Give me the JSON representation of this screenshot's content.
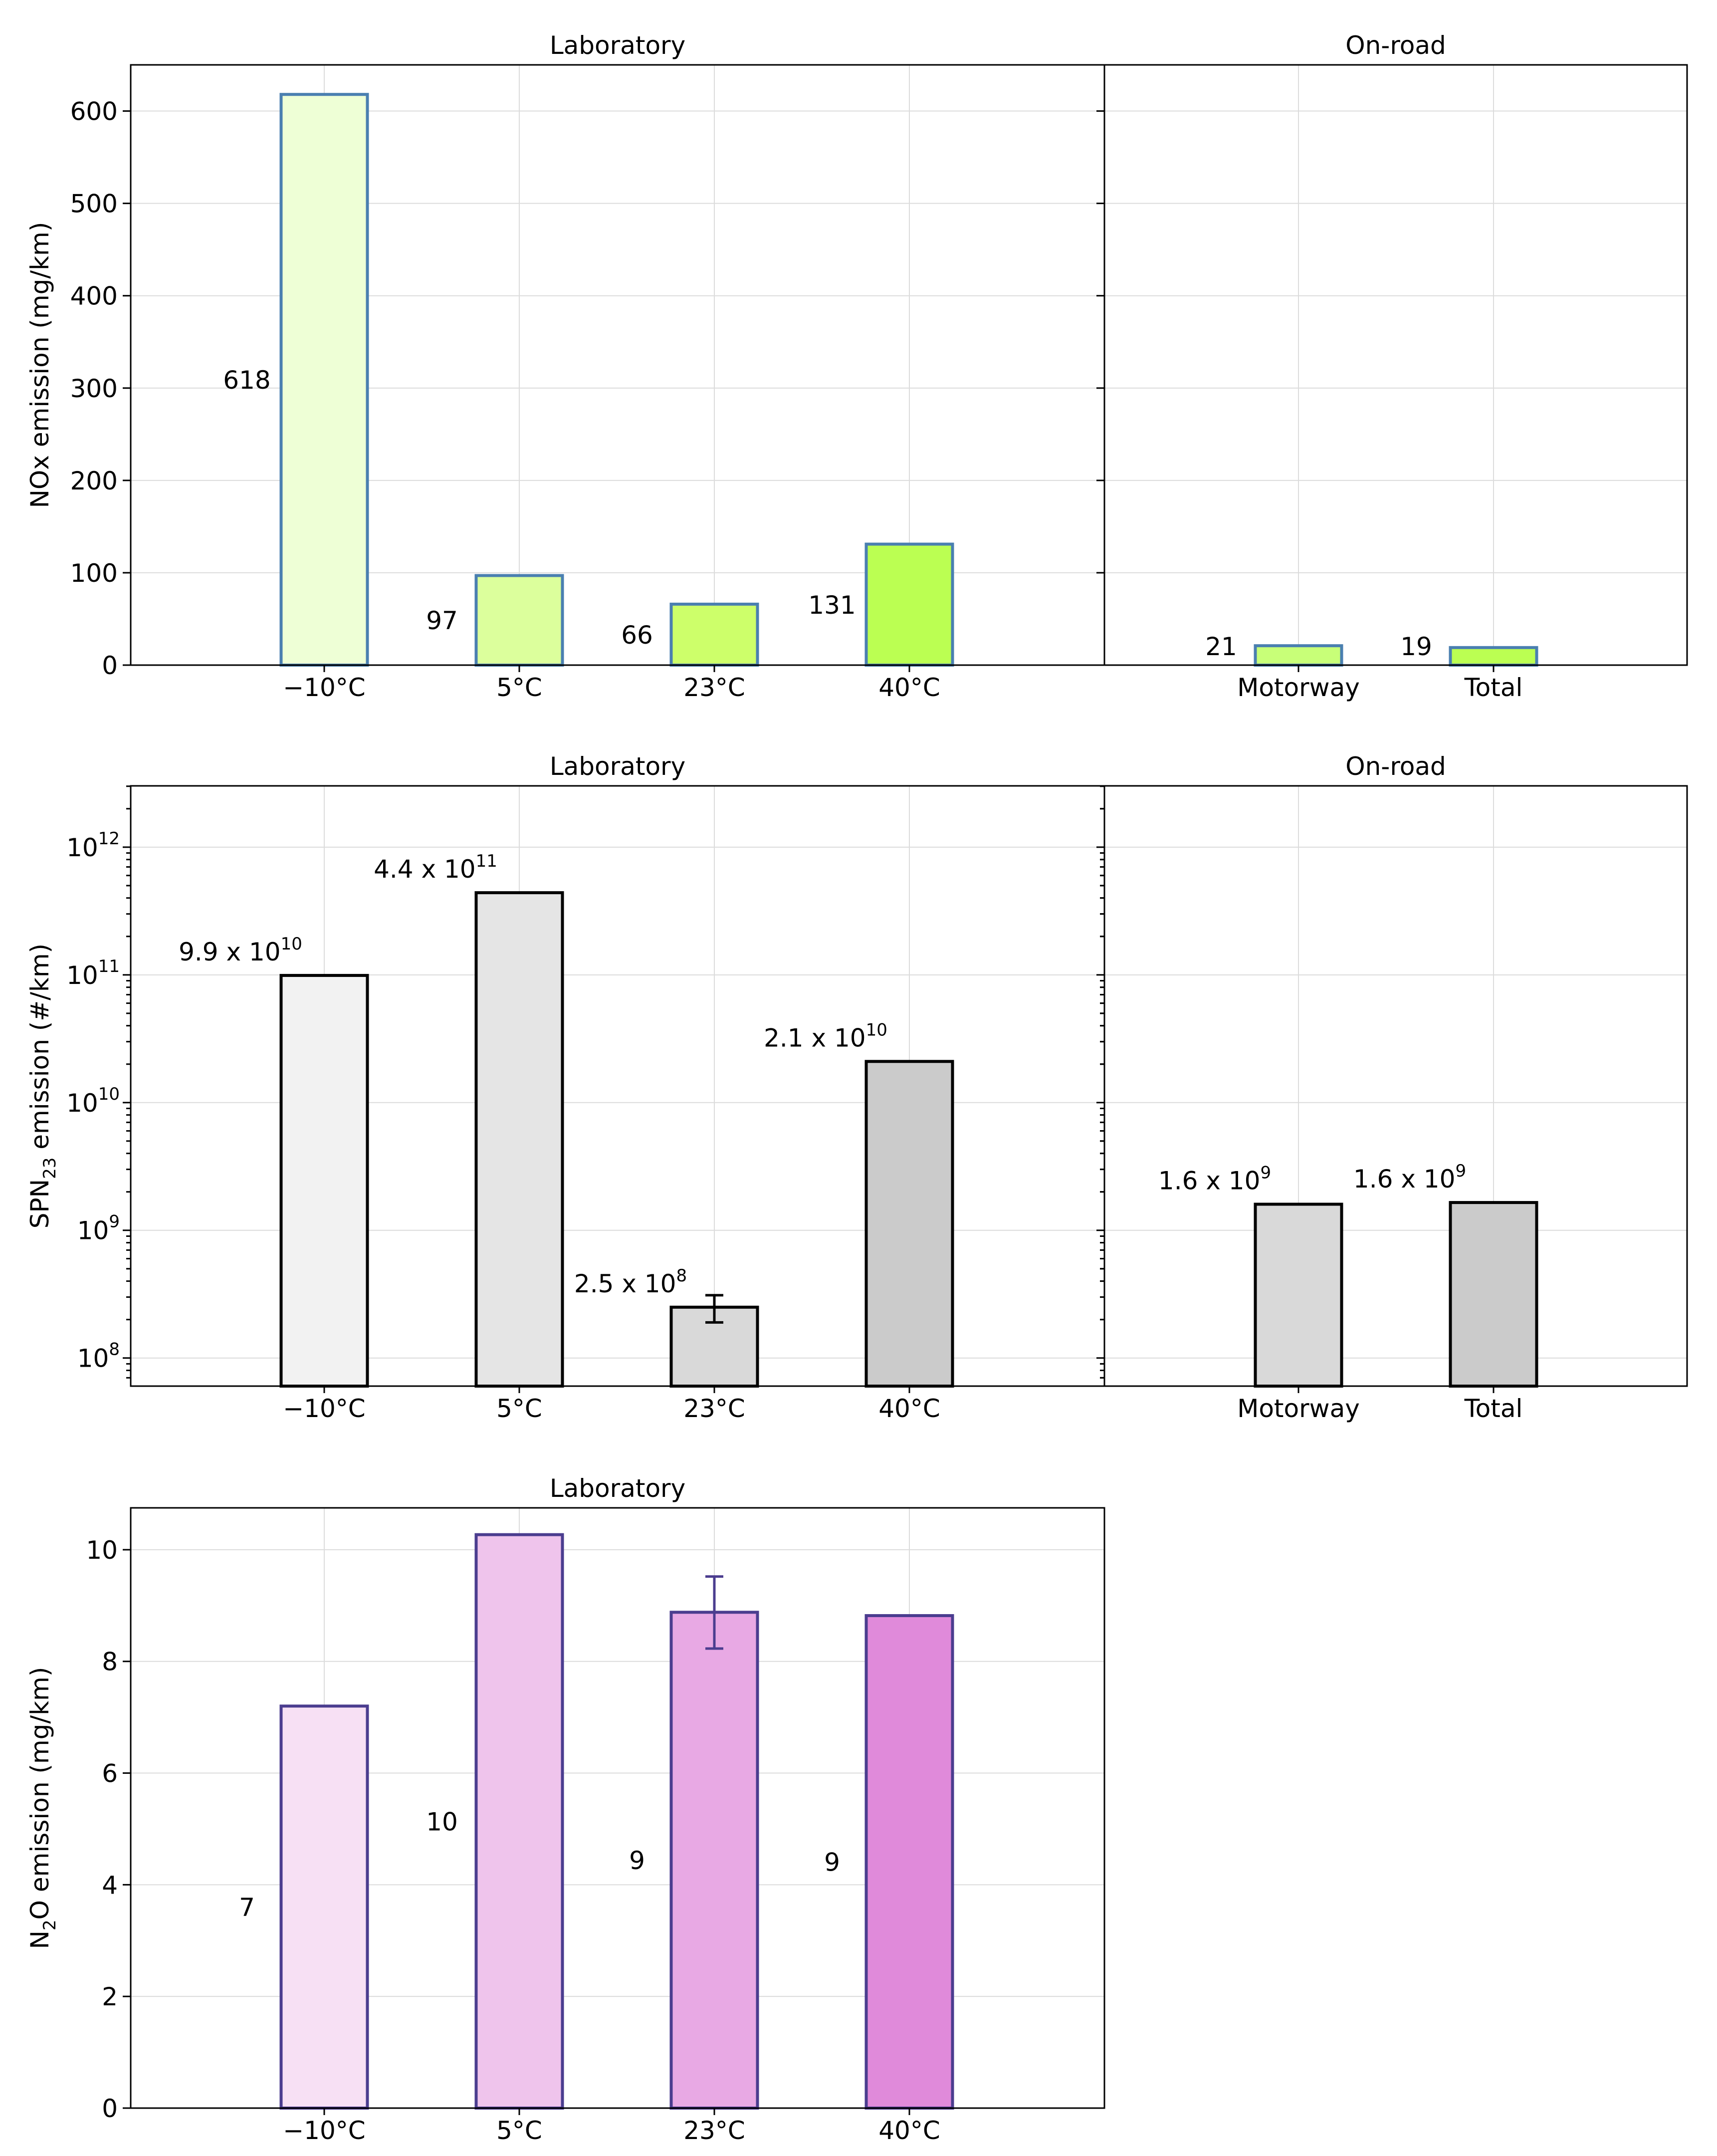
{
  "chart_data": [
    {
      "type": "bar",
      "title": "Laboratory",
      "ylabel": "NOx emission (mg/km)",
      "categories": [
        "−10°C",
        "5°C",
        "23°C",
        "40°C"
      ],
      "values": [
        618,
        97,
        66,
        131
      ],
      "labels": [
        "618",
        "97",
        "66",
        "131"
      ],
      "yscale": "linear",
      "ylim": [
        0,
        650
      ],
      "yticks": [
        0,
        100,
        200,
        300,
        400,
        500,
        600
      ],
      "fills": [
        "#eeffd6",
        "#dcff9c",
        "#cdff6a",
        "#bbff52"
      ],
      "edge": "#4a7fb0",
      "grid": true
    },
    {
      "type": "bar",
      "title": "On-road",
      "ylabel": "",
      "categories": [
        "Motorway",
        "Total"
      ],
      "values": [
        21,
        19
      ],
      "labels": [
        "21",
        "19"
      ],
      "yscale": "linear",
      "ylim": [
        0,
        650
      ],
      "fills": [
        "#c8ff78",
        "#bbff52"
      ],
      "edge": "#4a7fb0",
      "grid": true
    },
    {
      "type": "bar",
      "title": "Laboratory",
      "ylabel": "SPN23 emission (#/km)",
      "categories": [
        "−10°C",
        "5°C",
        "23°C",
        "40°C"
      ],
      "values": [
        99000000000,
        440000000000,
        250000000,
        21000000000
      ],
      "errors": [
        null,
        null,
        [
          190000000,
          310000000
        ],
        null
      ],
      "labels": [
        {
          "base": "9.9 x 10",
          "exp": "10"
        },
        {
          "base": "4.4 x 10",
          "exp": "11"
        },
        {
          "base": "2.5 x 10",
          "exp": "8"
        },
        {
          "base": "2.1 x 10",
          "exp": "10"
        }
      ],
      "yscale": "log",
      "ylim_log10": [
        7.78,
        12.48
      ],
      "yticks_log10": [
        8,
        9,
        10,
        11,
        12
      ],
      "fills": [
        "#f2f2f2",
        "#e5e5e5",
        "#d9d9d9",
        "#cbcbcb"
      ],
      "edge": "#000000",
      "grid": true
    },
    {
      "type": "bar",
      "title": "On-road",
      "ylabel": "",
      "categories": [
        "Motorway",
        "Total"
      ],
      "values": [
        1600000000,
        1650000000
      ],
      "labels": [
        {
          "base": "1.6 x 10",
          "exp": "9"
        },
        {
          "base": "1.6 x 10",
          "exp": "9"
        }
      ],
      "yscale": "log",
      "ylim_log10": [
        7.78,
        12.48
      ],
      "fills": [
        "#d9d9d9",
        "#cbcbcb"
      ],
      "edge": "#000000",
      "grid": true
    },
    {
      "type": "bar",
      "title": "Laboratory",
      "ylabel": "N2O emission (mg/km)",
      "categories": [
        "−10°C",
        "5°C",
        "23°C",
        "40°C"
      ],
      "values": [
        7.2,
        10.27,
        8.88,
        8.82
      ],
      "errors": [
        null,
        null,
        [
          8.23,
          9.52
        ],
        null
      ],
      "labels": [
        "7",
        "10",
        "9",
        "9"
      ],
      "yscale": "linear",
      "ylim": [
        0,
        10.75
      ],
      "yticks": [
        0,
        2,
        4,
        6,
        8,
        10
      ],
      "fills": [
        "#f7e0f4",
        "#efc4ec",
        "#e8a9e4",
        "#e08ada"
      ],
      "edge": "#4b3d8f",
      "grid": true
    }
  ]
}
